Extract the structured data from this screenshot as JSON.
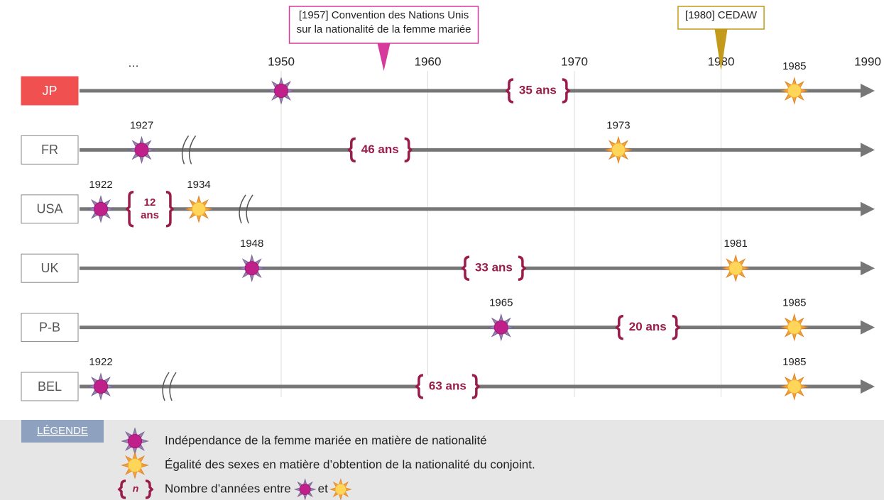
{
  "axis": {
    "ellipsis": "…",
    "ticks": [
      1950,
      1960,
      1970,
      1980,
      1990
    ]
  },
  "callouts": [
    {
      "year": 1957,
      "lines": [
        "[1957] Convention des Nations Unis",
        "sur la nationalité de la femme mariée"
      ],
      "color": "#d63a9c"
    },
    {
      "year": 1980,
      "lines": [
        "[1980] CEDAW"
      ],
      "color": "#c49a1a"
    }
  ],
  "rows": [
    {
      "label": "JP",
      "highlight": true,
      "break": false,
      "events": [
        {
          "year": 1950,
          "kind": "independence",
          "labeled": false
        },
        {
          "year": 1985,
          "kind": "equality",
          "labeled": true
        }
      ],
      "gap": [
        "35 ans"
      ]
    },
    {
      "label": "FR",
      "highlight": false,
      "break": true,
      "events": [
        {
          "year": 1927,
          "kind": "independence",
          "labeled": true
        },
        {
          "year": 1973,
          "kind": "equality",
          "labeled": true
        }
      ],
      "gap": [
        "46 ans"
      ]
    },
    {
      "label": "USA",
      "highlight": false,
      "break": true,
      "events": [
        {
          "year": 1922,
          "kind": "independence",
          "labeled": true
        },
        {
          "year": 1934,
          "kind": "equality",
          "labeled": true
        }
      ],
      "gap": [
        "12",
        "ans"
      ]
    },
    {
      "label": "UK",
      "highlight": false,
      "break": false,
      "events": [
        {
          "year": 1948,
          "kind": "independence",
          "labeled": true
        },
        {
          "year": 1981,
          "kind": "equality",
          "labeled": true
        }
      ],
      "gap": [
        "33 ans"
      ]
    },
    {
      "label": "P-B",
      "highlight": false,
      "break": false,
      "events": [
        {
          "year": 1965,
          "kind": "independence",
          "labeled": true
        },
        {
          "year": 1985,
          "kind": "equality",
          "labeled": true
        }
      ],
      "gap": [
        "20 ans"
      ]
    },
    {
      "label": "BEL",
      "highlight": false,
      "break": true,
      "events": [
        {
          "year": 1922,
          "kind": "independence",
          "labeled": true
        },
        {
          "year": 1985,
          "kind": "equality",
          "labeled": true
        }
      ],
      "gap": [
        "63 ans"
      ]
    }
  ],
  "legend": {
    "title": "Légende",
    "independence": "Indépendance de la femme mariée en matière de nationalité",
    "equality": "Égalité des sexes en matière d’obtention de la nationalité du conjoint.",
    "gap_symbol": "n",
    "gap_text": "Nombre d’années entre",
    "and": "et"
  }
}
